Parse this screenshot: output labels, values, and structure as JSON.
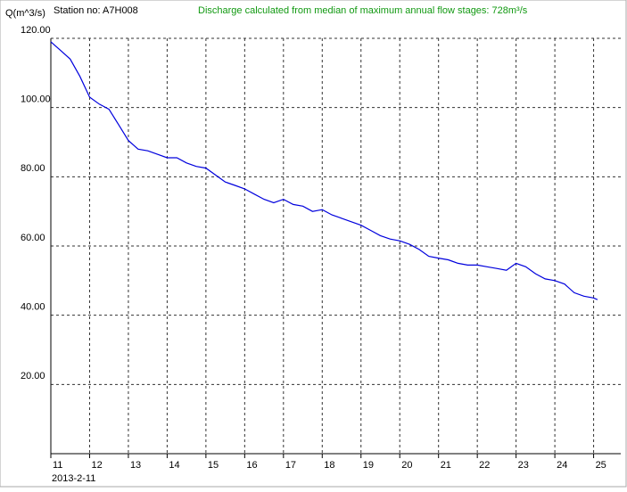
{
  "chart_data": {
    "type": "line",
    "station": "Station no: A7H008",
    "title": "Discharge calculated from median of maximum annual flow stages: 728m³/s",
    "y_label": "Q(m^3/s)",
    "x_label": "2013-2-11",
    "xlim": [
      11,
      25.7
    ],
    "ylim": [
      0,
      120
    ],
    "xticks": [
      11,
      12,
      13,
      14,
      15,
      16,
      17,
      18,
      19,
      20,
      21,
      22,
      23,
      24,
      25
    ],
    "yticks": [
      {
        "value": 20,
        "label": "20.00"
      },
      {
        "value": 40,
        "label": "40.00"
      },
      {
        "value": 60,
        "label": "60.00"
      },
      {
        "value": 80,
        "label": "80.00"
      },
      {
        "value": 100,
        "label": "100.00"
      },
      {
        "value": 120,
        "label": "120.00"
      }
    ],
    "grid": true,
    "series": [
      {
        "color": "#0000dd",
        "x": [
          11,
          11.25,
          11.5,
          11.75,
          12,
          12.25,
          12.5,
          12.75,
          13,
          13.25,
          13.5,
          13.75,
          14,
          14.25,
          14.5,
          14.75,
          15,
          15.25,
          15.5,
          15.75,
          16,
          16.25,
          16.5,
          16.75,
          17,
          17.25,
          17.5,
          17.75,
          18,
          18.25,
          18.5,
          18.75,
          19,
          19.25,
          19.5,
          19.75,
          20,
          20.25,
          20.5,
          20.75,
          21,
          21.25,
          21.5,
          21.75,
          22,
          22.25,
          22.5,
          22.75,
          23,
          23.25,
          23.5,
          23.75,
          24,
          24.25,
          24.5,
          24.75,
          25,
          25.1
        ],
        "values": [
          119,
          116.5,
          114,
          109,
          103,
          101,
          99.5,
          95,
          90.5,
          88,
          87.5,
          86.5,
          85.5,
          85.5,
          84,
          83,
          82.5,
          80.5,
          78.5,
          77.5,
          76.5,
          75,
          73.5,
          72.5,
          73.5,
          72,
          71.5,
          70,
          70.5,
          69,
          68,
          67,
          66,
          64.5,
          63,
          62,
          61.5,
          60.5,
          59,
          57,
          56.5,
          56,
          55,
          54.5,
          54.5,
          54,
          53.5,
          53,
          55,
          54,
          52,
          50.5,
          50,
          49,
          46.5,
          45.5,
          45,
          44.5
        ]
      }
    ]
  }
}
